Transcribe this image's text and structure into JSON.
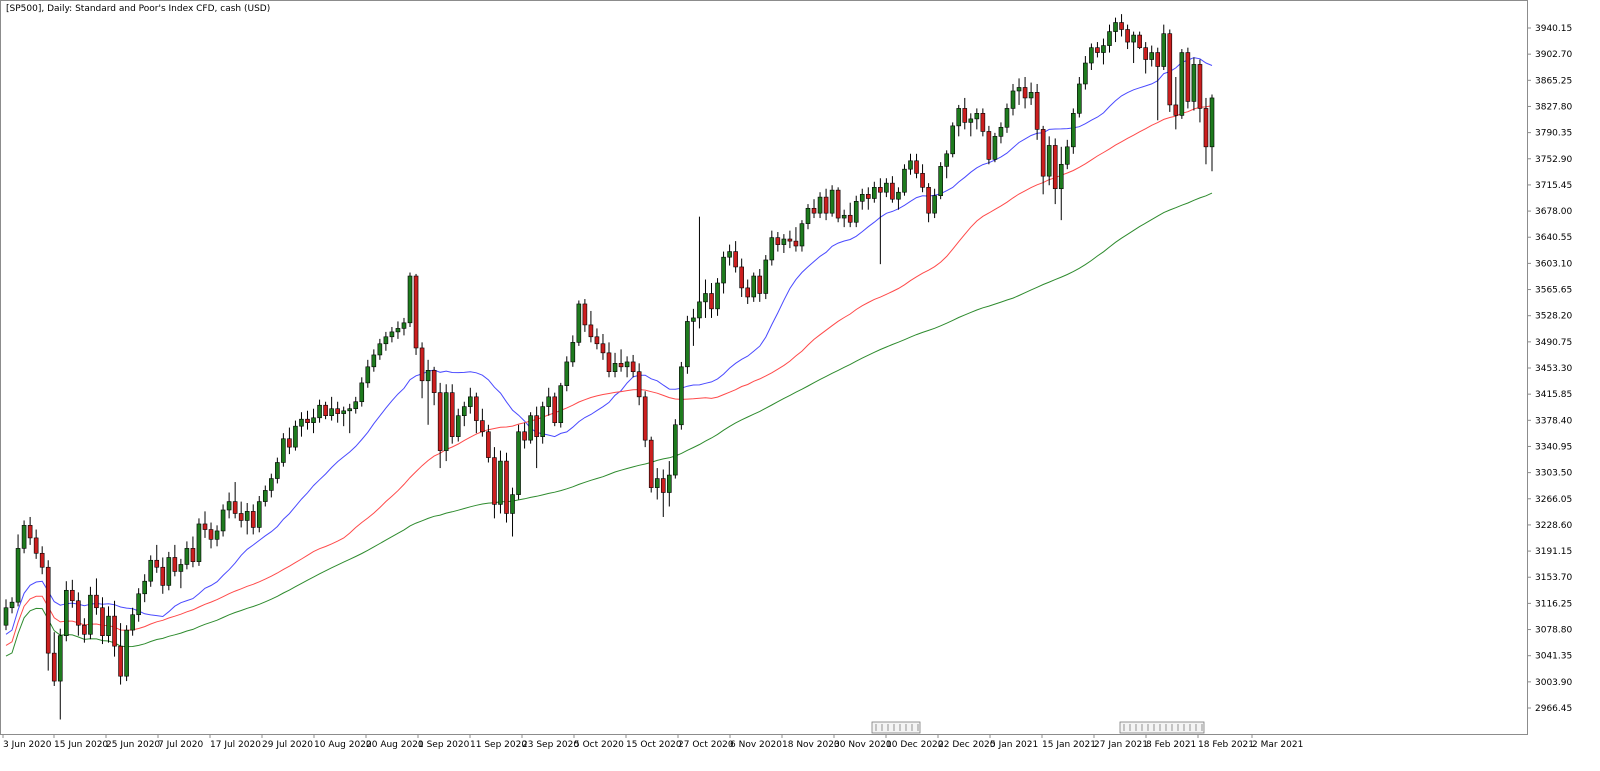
{
  "chart_data": {
    "type": "candlestick",
    "title": "[SP500], Daily:  Standard and Poor's Index CFD, cash (USD)",
    "y_axis": {
      "position": "right",
      "ylim": [
        2940,
        3975
      ],
      "ticks": [
        "3940.15",
        "3902.70",
        "3865.25",
        "3827.80",
        "3790.35",
        "3752.90",
        "3715.45",
        "3678.00",
        "3640.55",
        "3603.10",
        "3565.65",
        "3528.20",
        "3490.75",
        "3453.30",
        "3415.85",
        "3378.40",
        "3340.95",
        "3303.50",
        "3266.05",
        "3228.60",
        "3191.15",
        "3153.70",
        "3116.25",
        "3078.80",
        "3041.35",
        "3003.90",
        "2966.45"
      ]
    },
    "x_axis": {
      "labels": [
        "3 Jun 2020",
        "15 Jun 2020",
        "25 Jun 2020",
        "7 Jul 2020",
        "17 Jul 2020",
        "29 Jul 2020",
        "10 Aug 2020",
        "20 Aug 2020",
        "1 Sep 2020",
        "11 Sep 2020",
        "23 Sep 2020",
        "5 Oct 2020",
        "15 Oct 2020",
        "27 Oct 2020",
        "6 Nov 2020",
        "18 Nov 2020",
        "30 Nov 2020",
        "10 Dec 2020",
        "22 Dec 2020",
        "5 Jan 2021",
        "15 Jan 2021",
        "27 Jan 2021",
        "8 Feb 2021",
        "18 Feb 2021",
        "2 Mar 2021"
      ]
    },
    "candle_colors": {
      "up": "#1e7b1e",
      "down": "#cc1f1f",
      "wick": "#000000"
    },
    "moving_averages": [
      {
        "color": "#4a4aff",
        "period_bars": 20
      },
      {
        "color": "#ff4a4a",
        "period_bars": 50
      },
      {
        "color": "#2e8b2e",
        "period_bars": 100
      }
    ],
    "candles": [
      [
        3085,
        3122,
        3078,
        3110
      ],
      [
        3110,
        3125,
        3102,
        3118
      ],
      [
        3118,
        3215,
        3112,
        3195
      ],
      [
        3195,
        3235,
        3188,
        3228
      ],
      [
        3228,
        3240,
        3200,
        3210
      ],
      [
        3210,
        3222,
        3180,
        3188
      ],
      [
        3188,
        3198,
        3158,
        3168
      ],
      [
        3168,
        3178,
        3020,
        3045
      ],
      [
        3045,
        3075,
        2998,
        3005
      ],
      [
        3005,
        3080,
        2950,
        3070
      ],
      [
        3070,
        3148,
        3062,
        3135
      ],
      [
        3135,
        3150,
        3110,
        3120
      ],
      [
        3120,
        3132,
        3070,
        3085
      ],
      [
        3085,
        3095,
        3060,
        3072
      ],
      [
        3072,
        3140,
        3065,
        3128
      ],
      [
        3128,
        3152,
        3100,
        3110
      ],
      [
        3110,
        3125,
        3058,
        3070
      ],
      [
        3070,
        3112,
        3060,
        3098
      ],
      [
        3098,
        3120,
        3040,
        3055
      ],
      [
        3055,
        3088,
        3000,
        3012
      ],
      [
        3012,
        3085,
        3005,
        3078
      ],
      [
        3078,
        3110,
        3070,
        3100
      ],
      [
        3100,
        3138,
        3090,
        3130
      ],
      [
        3130,
        3158,
        3118,
        3148
      ],
      [
        3148,
        3185,
        3140,
        3178
      ],
      [
        3178,
        3200,
        3160,
        3168
      ],
      [
        3168,
        3182,
        3130,
        3142
      ],
      [
        3142,
        3190,
        3135,
        3182
      ],
      [
        3182,
        3200,
        3155,
        3162
      ],
      [
        3162,
        3180,
        3138,
        3172
      ],
      [
        3172,
        3205,
        3165,
        3195
      ],
      [
        3195,
        3212,
        3168,
        3176
      ],
      [
        3176,
        3238,
        3170,
        3230
      ],
      [
        3230,
        3248,
        3210,
        3222
      ],
      [
        3222,
        3232,
        3195,
        3208
      ],
      [
        3208,
        3228,
        3198,
        3220
      ],
      [
        3220,
        3258,
        3212,
        3250
      ],
      [
        3250,
        3275,
        3238,
        3262
      ],
      [
        3262,
        3290,
        3238,
        3245
      ],
      [
        3245,
        3262,
        3225,
        3235
      ],
      [
        3235,
        3260,
        3215,
        3248
      ],
      [
        3248,
        3258,
        3215,
        3225
      ],
      [
        3225,
        3270,
        3218,
        3262
      ],
      [
        3262,
        3285,
        3255,
        3278
      ],
      [
        3278,
        3302,
        3268,
        3295
      ],
      [
        3295,
        3325,
        3288,
        3318
      ],
      [
        3318,
        3360,
        3312,
        3352
      ],
      [
        3352,
        3368,
        3330,
        3340
      ],
      [
        3340,
        3378,
        3335,
        3370
      ],
      [
        3370,
        3390,
        3355,
        3380
      ],
      [
        3380,
        3392,
        3365,
        3375
      ],
      [
        3375,
        3395,
        3360,
        3382
      ],
      [
        3382,
        3408,
        3375,
        3400
      ],
      [
        3400,
        3405,
        3380,
        3385
      ],
      [
        3385,
        3412,
        3378,
        3395
      ],
      [
        3395,
        3405,
        3375,
        3388
      ],
      [
        3388,
        3398,
        3370,
        3392
      ],
      [
        3392,
        3402,
        3360,
        3395
      ],
      [
        3395,
        3412,
        3388,
        3405
      ],
      [
        3405,
        3440,
        3398,
        3432
      ],
      [
        3432,
        3465,
        3425,
        3455
      ],
      [
        3455,
        3480,
        3448,
        3472
      ],
      [
        3472,
        3495,
        3465,
        3488
      ],
      [
        3488,
        3505,
        3478,
        3498
      ],
      [
        3498,
        3512,
        3490,
        3505
      ],
      [
        3505,
        3520,
        3495,
        3510
      ],
      [
        3510,
        3525,
        3500,
        3518
      ],
      [
        3518,
        3590,
        3512,
        3585
      ],
      [
        3585,
        3588,
        3472,
        3482
      ],
      [
        3482,
        3490,
        3410,
        3435
      ],
      [
        3435,
        3465,
        3372,
        3450
      ],
      [
        3450,
        3455,
        3400,
        3418
      ],
      [
        3418,
        3432,
        3310,
        3335
      ],
      [
        3335,
        3430,
        3320,
        3418
      ],
      [
        3418,
        3430,
        3345,
        3355
      ],
      [
        3355,
        3395,
        3348,
        3385
      ],
      [
        3385,
        3405,
        3370,
        3398
      ],
      [
        3398,
        3425,
        3388,
        3412
      ],
      [
        3412,
        3418,
        3360,
        3378
      ],
      [
        3378,
        3395,
        3355,
        3362
      ],
      [
        3362,
        3372,
        3318,
        3325
      ],
      [
        3325,
        3340,
        3238,
        3258
      ],
      [
        3258,
        3335,
        3245,
        3320
      ],
      [
        3320,
        3332,
        3232,
        3245
      ],
      [
        3245,
        3282,
        3212,
        3272
      ],
      [
        3272,
        3372,
        3265,
        3362
      ],
      [
        3362,
        3375,
        3338,
        3350
      ],
      [
        3350,
        3390,
        3345,
        3385
      ],
      [
        3385,
        3398,
        3310,
        3355
      ],
      [
        3355,
        3405,
        3345,
        3398
      ],
      [
        3398,
        3425,
        3385,
        3412
      ],
      [
        3412,
        3418,
        3370,
        3375
      ],
      [
        3375,
        3432,
        3368,
        3428
      ],
      [
        3428,
        3470,
        3420,
        3462
      ],
      [
        3462,
        3500,
        3455,
        3490
      ],
      [
        3490,
        3550,
        3485,
        3545
      ],
      [
        3545,
        3552,
        3505,
        3515
      ],
      [
        3515,
        3535,
        3490,
        3498
      ],
      [
        3498,
        3510,
        3480,
        3488
      ],
      [
        3488,
        3502,
        3465,
        3475
      ],
      [
        3475,
        3490,
        3440,
        3448
      ],
      [
        3448,
        3475,
        3440,
        3460
      ],
      [
        3460,
        3480,
        3448,
        3455
      ],
      [
        3455,
        3470,
        3440,
        3462
      ],
      [
        3462,
        3472,
        3440,
        3448
      ],
      [
        3448,
        3460,
        3400,
        3412
      ],
      [
        3412,
        3420,
        3340,
        3350
      ],
      [
        3350,
        3355,
        3275,
        3282
      ],
      [
        3282,
        3310,
        3265,
        3295
      ],
      [
        3295,
        3308,
        3240,
        3275
      ],
      [
        3275,
        3320,
        3255,
        3300
      ],
      [
        3300,
        3380,
        3295,
        3372
      ],
      [
        3372,
        3462,
        3365,
        3455
      ],
      [
        3455,
        3528,
        3445,
        3520
      ],
      [
        3520,
        3538,
        3485,
        3525
      ],
      [
        3525,
        3670,
        3510,
        3548
      ],
      [
        3548,
        3580,
        3525,
        3560
      ],
      [
        3560,
        3575,
        3525,
        3538
      ],
      [
        3538,
        3582,
        3528,
        3575
      ],
      [
        3575,
        3620,
        3560,
        3612
      ],
      [
        3612,
        3630,
        3600,
        3620
      ],
      [
        3620,
        3635,
        3590,
        3598
      ],
      [
        3598,
        3610,
        3555,
        3568
      ],
      [
        3568,
        3580,
        3545,
        3555
      ],
      [
        3555,
        3590,
        3548,
        3585
      ],
      [
        3585,
        3595,
        3548,
        3560
      ],
      [
        3560,
        3615,
        3552,
        3608
      ],
      [
        3608,
        3650,
        3600,
        3640
      ],
      [
        3640,
        3648,
        3620,
        3630
      ],
      [
        3630,
        3645,
        3618,
        3638
      ],
      [
        3638,
        3650,
        3625,
        3635
      ],
      [
        3635,
        3655,
        3620,
        3628
      ],
      [
        3628,
        3665,
        3620,
        3660
      ],
      [
        3660,
        3688,
        3652,
        3682
      ],
      [
        3682,
        3695,
        3668,
        3675
      ],
      [
        3675,
        3705,
        3668,
        3698
      ],
      [
        3698,
        3710,
        3665,
        3675
      ],
      [
        3675,
        3715,
        3670,
        3708
      ],
      [
        3708,
        3712,
        3662,
        3668
      ],
      [
        3668,
        3680,
        3655,
        3672
      ],
      [
        3672,
        3690,
        3655,
        3662
      ],
      [
        3662,
        3700,
        3655,
        3692
      ],
      [
        3692,
        3710,
        3680,
        3702
      ],
      [
        3702,
        3712,
        3680,
        3696
      ],
      [
        3696,
        3720,
        3690,
        3712
      ],
      [
        3712,
        3725,
        3602,
        3705
      ],
      [
        3705,
        3725,
        3698,
        3718
      ],
      [
        3718,
        3728,
        3690,
        3695
      ],
      [
        3695,
        3712,
        3680,
        3705
      ],
      [
        3705,
        3745,
        3700,
        3738
      ],
      [
        3738,
        3760,
        3730,
        3750
      ],
      [
        3750,
        3760,
        3725,
        3732
      ],
      [
        3732,
        3745,
        3705,
        3712
      ],
      [
        3712,
        3718,
        3662,
        3675
      ],
      [
        3675,
        3710,
        3668,
        3700
      ],
      [
        3700,
        3748,
        3695,
        3742
      ],
      [
        3742,
        3765,
        3725,
        3760
      ],
      [
        3760,
        3805,
        3755,
        3800
      ],
      [
        3800,
        3830,
        3785,
        3825
      ],
      [
        3825,
        3840,
        3795,
        3805
      ],
      [
        3805,
        3818,
        3785,
        3810
      ],
      [
        3810,
        3825,
        3795,
        3818
      ],
      [
        3818,
        3825,
        3785,
        3792
      ],
      [
        3792,
        3800,
        3745,
        3752
      ],
      [
        3752,
        3790,
        3748,
        3785
      ],
      [
        3785,
        3805,
        3775,
        3798
      ],
      [
        3798,
        3832,
        3790,
        3825
      ],
      [
        3825,
        3860,
        3815,
        3850
      ],
      [
        3850,
        3868,
        3830,
        3855
      ],
      [
        3855,
        3870,
        3825,
        3840
      ],
      [
        3840,
        3862,
        3830,
        3848
      ],
      [
        3848,
        3860,
        3780,
        3795
      ],
      [
        3795,
        3800,
        3702,
        3728
      ],
      [
        3728,
        3785,
        3715,
        3772
      ],
      [
        3772,
        3782,
        3688,
        3710
      ],
      [
        3710,
        3770,
        3665,
        3745
      ],
      [
        3745,
        3780,
        3738,
        3770
      ],
      [
        3770,
        3825,
        3760,
        3818
      ],
      [
        3818,
        3870,
        3812,
        3860
      ],
      [
        3860,
        3900,
        3852,
        3890
      ],
      [
        3890,
        3918,
        3880,
        3912
      ],
      [
        3912,
        3920,
        3898,
        3905
      ],
      [
        3905,
        3925,
        3888,
        3915
      ],
      [
        3915,
        3945,
        3905,
        3935
      ],
      [
        3935,
        3955,
        3920,
        3948
      ],
      [
        3948,
        3960,
        3928,
        3938
      ],
      [
        3938,
        3945,
        3910,
        3920
      ],
      [
        3920,
        3935,
        3890,
        3930
      ],
      [
        3930,
        3935,
        3910,
        3912
      ],
      [
        3912,
        3920,
        3875,
        3895
      ],
      [
        3895,
        3915,
        3885,
        3905
      ],
      [
        3905,
        3912,
        3808,
        3885
      ],
      [
        3885,
        3945,
        3880,
        3932
      ],
      [
        3932,
        3938,
        3820,
        3830
      ],
      [
        3830,
        3870,
        3795,
        3815
      ],
      [
        3815,
        3910,
        3810,
        3905
      ],
      [
        3905,
        3912,
        3825,
        3835
      ],
      [
        3835,
        3898,
        3822,
        3888
      ],
      [
        3888,
        3895,
        3805,
        3825
      ],
      [
        3825,
        3840,
        3745,
        3770
      ],
      [
        3770,
        3845,
        3735,
        3840
      ]
    ]
  }
}
